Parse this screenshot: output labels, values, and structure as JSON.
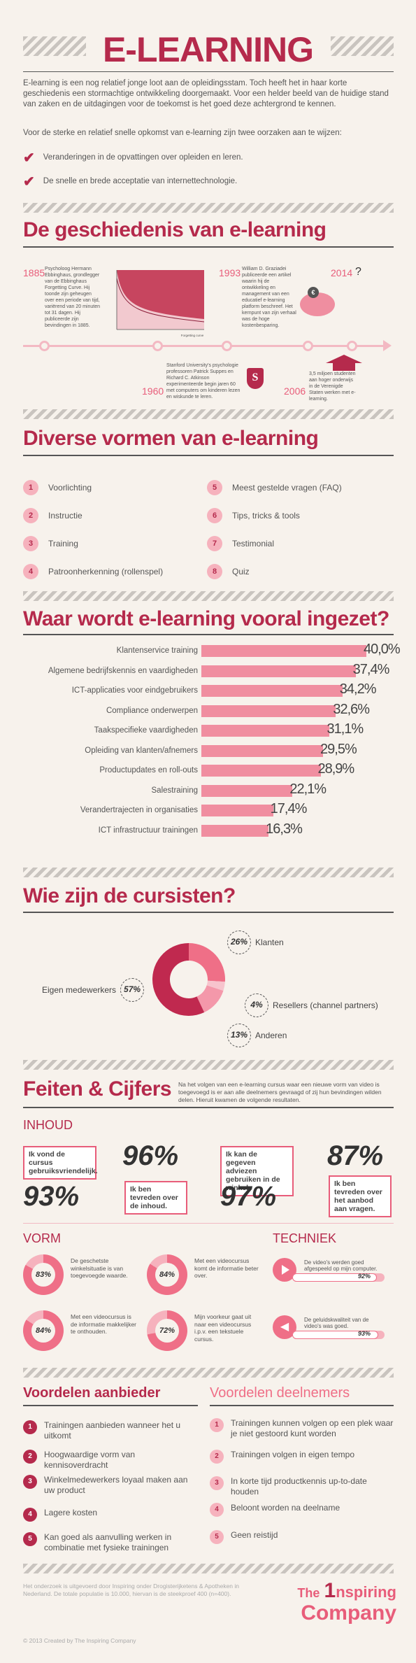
{
  "title": "E-LEARNING",
  "intro": {
    "p1": "E-learning is een nog relatief jonge loot aan de opleidingsstam. Toch heeft het in haar korte geschiedenis een stormachtige ontwikkeling doorgemaakt. Voor een helder beeld van de huidige stand van zaken en de uitdagingen voor de toekomst is het goed deze achtergrond te kennen.",
    "p2": "Voor de sterke en relatief snelle opkomst van e-learning zijn twee oorzaken aan te wijzen:",
    "reasons": [
      "Veranderingen in de opvattingen over opleiden en leren.",
      "De snelle en brede acceptatie van internettechnologie."
    ]
  },
  "history": {
    "heading": "De geschiedenis van e-learning",
    "events": [
      {
        "year": "1885",
        "text": "Psycholoog Hermann Ebbinghaus, grondlegger van de Ebbinghaus Forgetting Curve. Hij toonde zijn geheugen over een periode van tijd, variërend van 20 minuten tot 31 dagen. Hij publiceerde zijn bevindingen in 1885."
      },
      {
        "year": "1960",
        "text": "Stanford University's psychologie professoren Patrick Suppes en Richard C. Atkinson experimenteerde begin jaren 60 met computers om kinderen lezen en wiskunde te leren."
      },
      {
        "year": "1993",
        "text": "William D. Graziadei publiceerde een artikel waarin hij de ontwikkeling en management van een educatief e-learning platform beschreef. Het kernpunt van zijn verhaal was de hoge kostenbesparing."
      },
      {
        "year": "2006",
        "text": "3,5 miljoen studenten aan hoger onderwijs in de Verenigde Staten werken met e-learning."
      },
      {
        "year": "2014",
        "text": "?"
      }
    ],
    "forgetting_curve_xlabel": "Forgetting curve"
  },
  "forms": {
    "heading": "Diverse vormen van e-learning",
    "items": [
      {
        "n": "1",
        "label": "Voorlichting"
      },
      {
        "n": "2",
        "label": "Instructie"
      },
      {
        "n": "3",
        "label": "Training"
      },
      {
        "n": "4",
        "label": "Patroonherkenning (rollenspel)"
      },
      {
        "n": "5",
        "label": "Meest gestelde vragen (FAQ)"
      },
      {
        "n": "6",
        "label": "Tips, tricks & tools"
      },
      {
        "n": "7",
        "label": "Testimonial"
      },
      {
        "n": "8",
        "label": "Quiz"
      }
    ]
  },
  "usage": {
    "heading": "Waar wordt e-learning vooral ingezet?"
  },
  "chart_data": {
    "type": "bar",
    "categories": [
      "Klantenservice training",
      "Algemene bedrijfskennis en vaardigheden",
      "ICT-applicaties voor eindgebruikers",
      "Compliance onderwerpen",
      "Taakspecifieke vaardigheden",
      "Opleiding van klanten/afnemers",
      "Productupdates en roll-outs",
      "Salestraining",
      "Verandertrajecten in organisaties",
      "ICT infrastructuur trainingen"
    ],
    "values": [
      40.0,
      37.4,
      34.2,
      32.6,
      31.1,
      29.5,
      28.9,
      22.1,
      17.4,
      16.3
    ],
    "value_labels": [
      "40,0%",
      "37,4%",
      "34,2%",
      "32,6%",
      "31,1%",
      "29,5%",
      "28,9%",
      "22,1%",
      "17,4%",
      "16,3%"
    ],
    "ylim": [
      0,
      40
    ],
    "color": "#f08ea0"
  },
  "students": {
    "heading": "Wie zijn de cursisten?",
    "segments": [
      {
        "label": "Klanten",
        "value": 26,
        "value_label": "26%",
        "color": "#ef6f87"
      },
      {
        "label": "Resellers (channel partners)",
        "value": 4,
        "value_label": "4%",
        "color": "#f7c4cd"
      },
      {
        "label": "Anderen",
        "value": 13,
        "value_label": "13%",
        "color": "#f498aa"
      },
      {
        "label": "Eigen medewerkers",
        "value": 57,
        "value_label": "57%",
        "color": "#c0294f"
      }
    ]
  },
  "facts": {
    "heading": "Feiten & Cijfers",
    "intro": "Na het volgen van een e-learning cursus waar een nieuwe vorm van video is toegevoegd is er aan alle deelnemers gevraagd of zij hun bevindingen wilden delen. Hieruit kwamen de volgende resultaten.",
    "inhoud": {
      "label": "INHOUD",
      "items": [
        {
          "text": "Ik vond de cursus gebruiksvriendelijk.",
          "value": "93%"
        },
        {
          "text": "Ik ben tevreden over de inhoud.",
          "value": "96%"
        },
        {
          "text": "Ik kan de gegeven adviezen gebruiken in de winkel.",
          "value": "97%"
        },
        {
          "text": "Ik ben tevreden over het aanbod aan vragen.",
          "value": "87%"
        }
      ]
    },
    "vorm": {
      "label": "VORM",
      "items": [
        {
          "value": 83,
          "value_label": "83%",
          "text": "De geschetste winkelsituatie is van toegevoegde waarde."
        },
        {
          "value": 84,
          "value_label": "84%",
          "text": "Met een videocursus komt de informatie beter over."
        },
        {
          "value": 84,
          "value_label": "84%",
          "text": "Met een videocursus is de informatie makkelijker te onthouden."
        },
        {
          "value": 72,
          "value_label": "72%",
          "text": "Mijn voorkeur gaat uit naar een videocursus i.p.v. een tekstuele cursus."
        }
      ]
    },
    "techniek": {
      "label": "TECHNIEK",
      "items": [
        {
          "text": "De video's werden goed afgespeeld op mijn computer.",
          "value": 92,
          "value_label": "92%"
        },
        {
          "text": "De geluidskwaliteit van de video's was goed.",
          "value": 93,
          "value_label": "93%"
        }
      ]
    }
  },
  "benefits": {
    "provider": {
      "heading": "Voordelen aanbieder",
      "items": [
        {
          "n": "1",
          "text": "Trainingen aanbieden wanneer het u uitkomt"
        },
        {
          "n": "2",
          "text": "Hoogwaardige vorm van kennisoverdracht"
        },
        {
          "n": "3",
          "text": "Winkelmedewerkers loyaal maken aan uw product"
        },
        {
          "n": "4",
          "text": "Lagere kosten"
        },
        {
          "n": "5",
          "text": "Kan goed als aanvulling werken in combinatie met fysieke trainingen"
        }
      ]
    },
    "participants": {
      "heading": "Voordelen deelnemers",
      "items": [
        {
          "n": "1",
          "text": "Trainingen kunnen volgen op een plek waar je niet gestoord kunt worden"
        },
        {
          "n": "2",
          "text": "Trainingen volgen in eigen tempo"
        },
        {
          "n": "3",
          "text": "In korte tijd productkennis up-to-date houden"
        },
        {
          "n": "4",
          "text": "Beloont worden na deelname"
        },
        {
          "n": "5",
          "text": "Geen reistijd"
        }
      ]
    }
  },
  "footer": {
    "note": "Het onderzoek is uitgevoerd door Inspiring onder Drogisterijketens & Apotheken in Nederland. De totale populatie is 10.000, hiervan is de steekproef 400 (n=400).",
    "copyright": "© 2013 Created by The Inspiring Company",
    "logo_the": "The",
    "logo_one": "1",
    "logo_inspiring": "nspiring",
    "logo_company": "Company"
  }
}
